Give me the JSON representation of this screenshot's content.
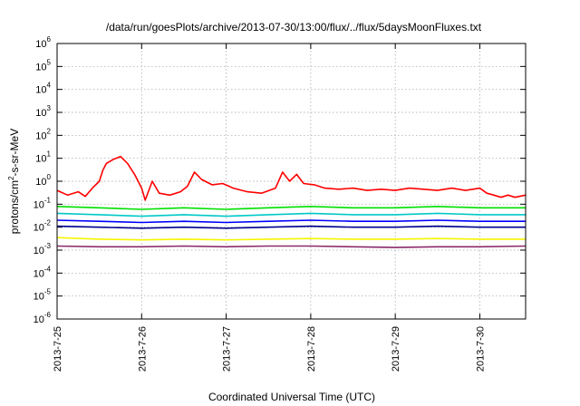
{
  "chart_data": {
    "type": "line",
    "title": "/data/run/goesPlots/archive/2013-07-30/13:00/flux/../flux/5daysMoonFluxes.txt",
    "xlabel": "Coordinated Universal Time (UTC)",
    "ylabel": "protons/cm²-s-sr-MeV",
    "ylabel_parts": {
      "pre": "protons/cm",
      "sup": "2",
      "post": "-s-sr-MeV"
    },
    "xscale": "time",
    "yscale": "log",
    "xlim": [
      "2013-07-25T00:00",
      "2013-07-30T13:00"
    ],
    "ylim": [
      1e-06,
      1000000
    ],
    "grid": true,
    "legend": "none",
    "xticks": [
      "2013-7-25",
      "2013-7-26",
      "2013-7-27",
      "2013-7-28",
      "2013-7-29",
      "2013-7-30"
    ],
    "yticks": [
      {
        "base": "10",
        "exp": "-6",
        "value": 1e-06
      },
      {
        "base": "10",
        "exp": "-5",
        "value": 1e-05
      },
      {
        "base": "10",
        "exp": "-4",
        "value": 0.0001
      },
      {
        "base": "10",
        "exp": "-3",
        "value": 0.001
      },
      {
        "base": "10",
        "exp": "-2",
        "value": 0.01
      },
      {
        "base": "10",
        "exp": "-1",
        "value": 0.1
      },
      {
        "base": "10",
        "exp": "0",
        "value": 1
      },
      {
        "base": "10",
        "exp": "1",
        "value": 10
      },
      {
        "base": "10",
        "exp": "2",
        "value": 100
      },
      {
        "base": "10",
        "exp": "3",
        "value": 1000
      },
      {
        "base": "10",
        "exp": "4",
        "value": 10000
      },
      {
        "base": "10",
        "exp": "5",
        "value": 100000
      },
      {
        "base": "10",
        "exp": "6",
        "value": 1000000
      }
    ],
    "series": [
      {
        "color": "#ff0000",
        "points": [
          [
            "2013-07-25T00:00",
            0.4
          ],
          [
            "2013-07-25T03:00",
            0.25
          ],
          [
            "2013-07-25T06:00",
            0.35
          ],
          [
            "2013-07-25T08:00",
            0.22
          ],
          [
            "2013-07-25T10:00",
            0.5
          ],
          [
            "2013-07-25T12:00",
            1.0
          ],
          [
            "2013-07-25T13:00",
            3.0
          ],
          [
            "2013-07-25T14:00",
            6.0
          ],
          [
            "2013-07-25T16:00",
            9.0
          ],
          [
            "2013-07-25T18:00",
            12.0
          ],
          [
            "2013-07-25T20:00",
            6.0
          ],
          [
            "2013-07-25T22:00",
            2.0
          ],
          [
            "2013-07-26T00:00",
            0.5
          ],
          [
            "2013-07-26T01:00",
            0.15
          ],
          [
            "2013-07-26T03:00",
            1.0
          ],
          [
            "2013-07-26T05:00",
            0.3
          ],
          [
            "2013-07-26T08:00",
            0.25
          ],
          [
            "2013-07-26T11:00",
            0.35
          ],
          [
            "2013-07-26T13:00",
            0.6
          ],
          [
            "2013-07-26T15:00",
            2.5
          ],
          [
            "2013-07-26T17:00",
            1.2
          ],
          [
            "2013-07-26T20:00",
            0.7
          ],
          [
            "2013-07-26T23:00",
            0.8
          ],
          [
            "2013-07-27T02:00",
            0.5
          ],
          [
            "2013-07-27T06:00",
            0.35
          ],
          [
            "2013-07-27T10:00",
            0.3
          ],
          [
            "2013-07-27T14:00",
            0.5
          ],
          [
            "2013-07-27T16:00",
            2.5
          ],
          [
            "2013-07-27T18:00",
            1.0
          ],
          [
            "2013-07-27T20:00",
            2.0
          ],
          [
            "2013-07-27T22:00",
            0.8
          ],
          [
            "2013-07-28T01:00",
            0.7
          ],
          [
            "2013-07-28T04:00",
            0.5
          ],
          [
            "2013-07-28T08:00",
            0.45
          ],
          [
            "2013-07-28T12:00",
            0.5
          ],
          [
            "2013-07-28T16:00",
            0.4
          ],
          [
            "2013-07-28T20:00",
            0.45
          ],
          [
            "2013-07-29T00:00",
            0.4
          ],
          [
            "2013-07-29T04:00",
            0.5
          ],
          [
            "2013-07-29T08:00",
            0.45
          ],
          [
            "2013-07-29T12:00",
            0.4
          ],
          [
            "2013-07-29T16:00",
            0.5
          ],
          [
            "2013-07-29T20:00",
            0.4
          ],
          [
            "2013-07-30T00:00",
            0.5
          ],
          [
            "2013-07-30T02:00",
            0.3
          ],
          [
            "2013-07-30T04:00",
            0.25
          ],
          [
            "2013-07-30T06:00",
            0.2
          ],
          [
            "2013-07-30T08:00",
            0.25
          ],
          [
            "2013-07-30T10:00",
            0.2
          ],
          [
            "2013-07-30T13:00",
            0.25
          ]
        ]
      },
      {
        "color": "#00e000",
        "points": [
          [
            "2013-07-25T00:00",
            0.08
          ],
          [
            "2013-07-25T12:00",
            0.07
          ],
          [
            "2013-07-26T00:00",
            0.06
          ],
          [
            "2013-07-26T12:00",
            0.07
          ],
          [
            "2013-07-27T00:00",
            0.06
          ],
          [
            "2013-07-27T12:00",
            0.07
          ],
          [
            "2013-07-28T00:00",
            0.08
          ],
          [
            "2013-07-28T12:00",
            0.07
          ],
          [
            "2013-07-29T00:00",
            0.07
          ],
          [
            "2013-07-29T12:00",
            0.08
          ],
          [
            "2013-07-30T00:00",
            0.07
          ],
          [
            "2013-07-30T13:00",
            0.07
          ]
        ]
      },
      {
        "color": "#00c8c8",
        "points": [
          [
            "2013-07-25T00:00",
            0.04
          ],
          [
            "2013-07-25T12:00",
            0.035
          ],
          [
            "2013-07-26T00:00",
            0.03
          ],
          [
            "2013-07-26T12:00",
            0.035
          ],
          [
            "2013-07-27T00:00",
            0.03
          ],
          [
            "2013-07-27T12:00",
            0.035
          ],
          [
            "2013-07-28T00:00",
            0.04
          ],
          [
            "2013-07-28T12:00",
            0.035
          ],
          [
            "2013-07-29T00:00",
            0.035
          ],
          [
            "2013-07-29T12:00",
            0.04
          ],
          [
            "2013-07-30T00:00",
            0.035
          ],
          [
            "2013-07-30T13:00",
            0.035
          ]
        ]
      },
      {
        "color": "#0000ff",
        "points": [
          [
            "2013-07-25T00:00",
            0.02
          ],
          [
            "2013-07-25T12:00",
            0.018
          ],
          [
            "2013-07-26T00:00",
            0.016
          ],
          [
            "2013-07-26T12:00",
            0.018
          ],
          [
            "2013-07-27T00:00",
            0.016
          ],
          [
            "2013-07-27T12:00",
            0.018
          ],
          [
            "2013-07-28T00:00",
            0.02
          ],
          [
            "2013-07-28T12:00",
            0.018
          ],
          [
            "2013-07-29T00:00",
            0.018
          ],
          [
            "2013-07-29T12:00",
            0.02
          ],
          [
            "2013-07-30T00:00",
            0.018
          ],
          [
            "2013-07-30T13:00",
            0.018
          ]
        ]
      },
      {
        "color": "#000090",
        "points": [
          [
            "2013-07-25T00:00",
            0.011
          ],
          [
            "2013-07-25T12:00",
            0.01
          ],
          [
            "2013-07-26T00:00",
            0.009
          ],
          [
            "2013-07-26T12:00",
            0.01
          ],
          [
            "2013-07-27T00:00",
            0.009
          ],
          [
            "2013-07-27T12:00",
            0.01
          ],
          [
            "2013-07-28T00:00",
            0.011
          ],
          [
            "2013-07-28T12:00",
            0.01
          ],
          [
            "2013-07-29T00:00",
            0.01
          ],
          [
            "2013-07-29T12:00",
            0.011
          ],
          [
            "2013-07-30T00:00",
            0.01
          ],
          [
            "2013-07-30T13:00",
            0.01
          ]
        ]
      },
      {
        "color": "#f5f500",
        "points": [
          [
            "2013-07-25T00:00",
            0.0035
          ],
          [
            "2013-07-25T12:00",
            0.003
          ],
          [
            "2013-07-26T00:00",
            0.0028
          ],
          [
            "2013-07-26T12:00",
            0.003
          ],
          [
            "2013-07-27T00:00",
            0.0028
          ],
          [
            "2013-07-27T12:00",
            0.003
          ],
          [
            "2013-07-28T00:00",
            0.0032
          ],
          [
            "2013-07-28T12:00",
            0.003
          ],
          [
            "2013-07-29T00:00",
            0.003
          ],
          [
            "2013-07-29T12:00",
            0.0032
          ],
          [
            "2013-07-30T00:00",
            0.003
          ],
          [
            "2013-07-30T13:00",
            0.003
          ]
        ]
      },
      {
        "color": "#8b2a6b",
        "points": [
          [
            "2013-07-25T00:00",
            0.0015
          ],
          [
            "2013-07-25T12:00",
            0.0014
          ],
          [
            "2013-07-26T00:00",
            0.0014
          ],
          [
            "2013-07-26T12:00",
            0.0015
          ],
          [
            "2013-07-27T00:00",
            0.0014
          ],
          [
            "2013-07-27T12:00",
            0.0015
          ],
          [
            "2013-07-28T00:00",
            0.0015
          ],
          [
            "2013-07-28T12:00",
            0.0014
          ],
          [
            "2013-07-29T00:00",
            0.0013
          ],
          [
            "2013-07-29T12:00",
            0.0014
          ],
          [
            "2013-07-30T00:00",
            0.0014
          ],
          [
            "2013-07-30T13:00",
            0.0015
          ]
        ]
      }
    ]
  }
}
